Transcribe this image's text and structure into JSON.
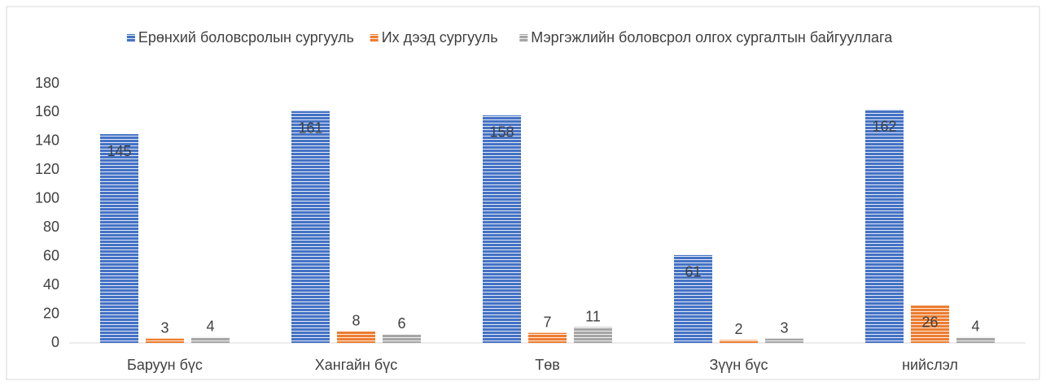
{
  "chart_data": {
    "type": "bar",
    "categories": [
      "Баруун бүс",
      "Хангайн бүс",
      "Төв",
      "Зүүн бүс",
      "нийслэл"
    ],
    "series": [
      {
        "name": "Ерөнхий боловсролын сургууль",
        "color": "#4472c4",
        "values": [
          145,
          161,
          158,
          61,
          162
        ]
      },
      {
        "name": "Их дээд сургууль",
        "color": "#ed7d31",
        "values": [
          3,
          8,
          7,
          2,
          26
        ]
      },
      {
        "name": "Мэргэжлийн боловсрол олгох сургалтын байгууллага",
        "color": "#a5a5a5",
        "values": [
          4,
          6,
          11,
          3,
          4
        ]
      }
    ],
    "ylim": [
      0,
      180
    ],
    "yticks": [
      0,
      20,
      40,
      60,
      80,
      100,
      120,
      140,
      160,
      180
    ],
    "grid": false,
    "legend": "top",
    "pattern": "horizontal-stripes"
  }
}
